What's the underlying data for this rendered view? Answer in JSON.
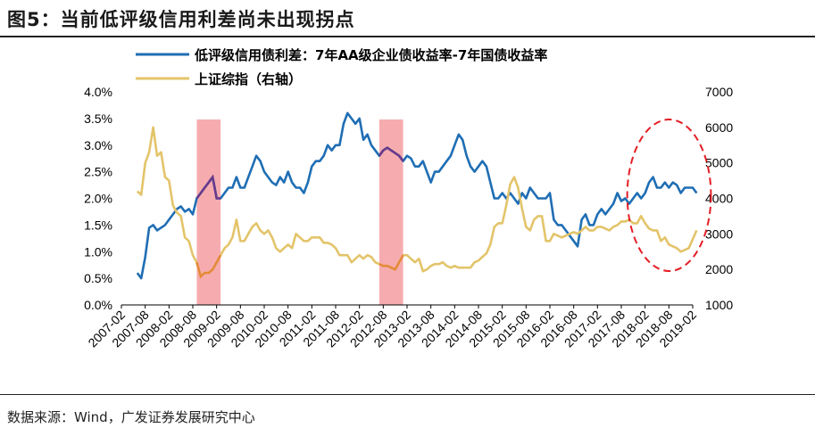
{
  "title": "图5：当前低评级信用利差尚未出现拐点",
  "source": "数据来源：Wind，广发证券发展研究中心",
  "colors": {
    "spread": "#1f6eb4",
    "spread_shaded": "#6a3a8c",
    "index": "#e3c46a",
    "index_shaded": "#e58a3a",
    "shade": "#f5a3a6",
    "circle": "#e31e24"
  },
  "chart_data": {
    "type": "line",
    "xlabel": "",
    "ylabel_left": "",
    "ylabel_right": "",
    "x_ticks": [
      "2007-02",
      "2007-08",
      "2008-02",
      "2008-08",
      "2009-02",
      "2009-08",
      "2010-02",
      "2010-08",
      "2011-02",
      "2011-08",
      "2012-02",
      "2012-08",
      "2013-02",
      "2013-08",
      "2014-02",
      "2014-08",
      "2015-02",
      "2015-08",
      "2016-02",
      "2016-08",
      "2017-02",
      "2017-08",
      "2018-02",
      "2018-08",
      "2019-02"
    ],
    "y_left_ticks": [
      "0.0%",
      "0.5%",
      "1.0%",
      "1.5%",
      "2.0%",
      "2.5%",
      "3.0%",
      "3.5%",
      "4.0%"
    ],
    "y_left_lim": [
      0,
      4
    ],
    "y_right_ticks": [
      "1000",
      "2000",
      "3000",
      "4000",
      "5000",
      "6000",
      "7000"
    ],
    "y_right_lim": [
      1000,
      7000
    ],
    "shaded_periods": [
      {
        "start": "2008-09",
        "end": "2009-03"
      },
      {
        "start": "2012-07",
        "end": "2013-01"
      }
    ],
    "highlight": {
      "start": "2018-02",
      "end": "2019-03",
      "shape": "dashed-ellipse"
    },
    "series": [
      {
        "name": "低评级信用债利差：7年AA级企业债收益率-7年国债收益率",
        "axis": "left",
        "x": [
          "2007-06",
          "2007-07",
          "2007-08",
          "2007-09",
          "2007-10",
          "2007-11",
          "2007-12",
          "2008-01",
          "2008-02",
          "2008-03",
          "2008-04",
          "2008-05",
          "2008-06",
          "2008-07",
          "2008-08",
          "2008-09",
          "2008-10",
          "2008-11",
          "2008-12",
          "2009-01",
          "2009-02",
          "2009-03",
          "2009-04",
          "2009-05",
          "2009-06",
          "2009-07",
          "2009-08",
          "2009-09",
          "2009-10",
          "2009-11",
          "2009-12",
          "2010-01",
          "2010-02",
          "2010-03",
          "2010-04",
          "2010-05",
          "2010-06",
          "2010-07",
          "2010-08",
          "2010-09",
          "2010-10",
          "2010-11",
          "2010-12",
          "2011-01",
          "2011-02",
          "2011-03",
          "2011-04",
          "2011-05",
          "2011-06",
          "2011-07",
          "2011-08",
          "2011-09",
          "2011-10",
          "2011-11",
          "2011-12",
          "2012-01",
          "2012-02",
          "2012-03",
          "2012-04",
          "2012-05",
          "2012-06",
          "2012-07",
          "2012-08",
          "2012-09",
          "2012-10",
          "2012-11",
          "2012-12",
          "2013-01",
          "2013-02",
          "2013-03",
          "2013-04",
          "2013-05",
          "2013-06",
          "2013-07",
          "2013-08",
          "2013-09",
          "2013-10",
          "2013-11",
          "2013-12",
          "2014-01",
          "2014-02",
          "2014-03",
          "2014-04",
          "2014-05",
          "2014-06",
          "2014-07",
          "2014-08",
          "2014-09",
          "2014-10",
          "2014-11",
          "2014-12",
          "2015-01",
          "2015-02",
          "2015-03",
          "2015-04",
          "2015-05",
          "2015-06",
          "2015-07",
          "2015-08",
          "2015-09",
          "2015-10",
          "2015-11",
          "2015-12",
          "2016-01",
          "2016-02",
          "2016-03",
          "2016-04",
          "2016-05",
          "2016-06",
          "2016-07",
          "2016-08",
          "2016-09",
          "2016-10",
          "2016-11",
          "2016-12",
          "2017-01",
          "2017-02",
          "2017-03",
          "2017-04",
          "2017-05",
          "2017-06",
          "2017-07",
          "2017-08",
          "2017-09",
          "2017-10",
          "2017-11",
          "2017-12",
          "2018-01",
          "2018-02",
          "2018-03",
          "2018-04",
          "2018-05",
          "2018-06",
          "2018-07",
          "2018-08",
          "2018-09",
          "2018-10",
          "2018-11",
          "2018-12",
          "2019-01",
          "2019-02",
          "2019-03"
        ],
        "values": [
          0.6,
          0.5,
          0.9,
          1.45,
          1.5,
          1.4,
          1.45,
          1.5,
          1.6,
          1.7,
          1.8,
          1.85,
          1.75,
          1.8,
          1.7,
          2.0,
          2.1,
          2.2,
          2.3,
          2.4,
          2.0,
          2.0,
          2.1,
          2.2,
          2.2,
          2.4,
          2.2,
          2.2,
          2.4,
          2.6,
          2.8,
          2.7,
          2.5,
          2.4,
          2.3,
          2.25,
          2.4,
          2.3,
          2.5,
          2.3,
          2.2,
          2.2,
          2.1,
          2.3,
          2.6,
          2.7,
          2.7,
          2.8,
          3.0,
          2.9,
          3.0,
          3.0,
          3.4,
          3.6,
          3.5,
          3.4,
          3.5,
          3.1,
          3.2,
          3.0,
          2.9,
          2.8,
          2.9,
          2.95,
          2.9,
          2.85,
          2.8,
          2.7,
          2.8,
          2.75,
          2.6,
          2.6,
          2.7,
          2.5,
          2.3,
          2.5,
          2.5,
          2.6,
          2.7,
          2.8,
          3.0,
          3.2,
          3.1,
          2.8,
          2.6,
          2.5,
          2.6,
          2.7,
          2.6,
          2.3,
          2.0,
          2.0,
          2.1,
          2.0,
          2.1,
          2.0,
          1.9,
          2.1,
          2.0,
          2.2,
          2.1,
          2.0,
          2.0,
          2.0,
          2.1,
          1.6,
          1.5,
          1.5,
          1.4,
          1.3,
          1.2,
          1.1,
          1.6,
          1.7,
          1.5,
          1.5,
          1.7,
          1.8,
          1.7,
          1.8,
          1.9,
          2.1,
          1.95,
          2.0,
          1.9,
          2.0,
          2.1,
          2.0,
          2.1,
          2.3,
          2.4,
          2.2,
          2.2,
          2.3,
          2.2,
          2.3,
          2.25,
          2.1,
          2.2,
          2.2,
          2.2,
          2.1
        ]
      },
      {
        "name": "上证综指（右轴）",
        "axis": "right",
        "x": [
          "2007-06",
          "2007-07",
          "2007-08",
          "2007-09",
          "2007-10",
          "2007-11",
          "2007-12",
          "2008-01",
          "2008-02",
          "2008-03",
          "2008-04",
          "2008-05",
          "2008-06",
          "2008-07",
          "2008-08",
          "2008-09",
          "2008-10",
          "2008-11",
          "2008-12",
          "2009-01",
          "2009-02",
          "2009-03",
          "2009-04",
          "2009-05",
          "2009-06",
          "2009-07",
          "2009-08",
          "2009-09",
          "2009-10",
          "2009-11",
          "2009-12",
          "2010-01",
          "2010-02",
          "2010-03",
          "2010-04",
          "2010-05",
          "2010-06",
          "2010-07",
          "2010-08",
          "2010-09",
          "2010-10",
          "2010-11",
          "2010-12",
          "2011-01",
          "2011-02",
          "2011-03",
          "2011-04",
          "2011-05",
          "2011-06",
          "2011-07",
          "2011-08",
          "2011-09",
          "2011-10",
          "2011-11",
          "2011-12",
          "2012-01",
          "2012-02",
          "2012-03",
          "2012-04",
          "2012-05",
          "2012-06",
          "2012-07",
          "2012-08",
          "2012-09",
          "2012-10",
          "2012-11",
          "2012-12",
          "2013-01",
          "2013-02",
          "2013-03",
          "2013-04",
          "2013-05",
          "2013-06",
          "2013-07",
          "2013-08",
          "2013-09",
          "2013-10",
          "2013-11",
          "2013-12",
          "2014-01",
          "2014-02",
          "2014-03",
          "2014-04",
          "2014-05",
          "2014-06",
          "2014-07",
          "2014-08",
          "2014-09",
          "2014-10",
          "2014-11",
          "2014-12",
          "2015-01",
          "2015-02",
          "2015-03",
          "2015-04",
          "2015-05",
          "2015-06",
          "2015-07",
          "2015-08",
          "2015-09",
          "2015-10",
          "2015-11",
          "2015-12",
          "2016-01",
          "2016-02",
          "2016-03",
          "2016-04",
          "2016-05",
          "2016-06",
          "2016-07",
          "2016-08",
          "2016-09",
          "2016-10",
          "2016-11",
          "2016-12",
          "2017-01",
          "2017-02",
          "2017-03",
          "2017-04",
          "2017-05",
          "2017-06",
          "2017-07",
          "2017-08",
          "2017-09",
          "2017-10",
          "2017-11",
          "2017-12",
          "2018-01",
          "2018-02",
          "2018-03",
          "2018-04",
          "2018-05",
          "2018-06",
          "2018-07",
          "2018-08",
          "2018-09",
          "2018-10",
          "2018-11",
          "2018-12",
          "2019-01",
          "2019-02",
          "2019-03"
        ],
        "values": [
          4200,
          4100,
          5000,
          5300,
          6000,
          5200,
          5300,
          4600,
          4500,
          3800,
          3600,
          3500,
          2900,
          2800,
          2400,
          2200,
          1800,
          1900,
          1900,
          2000,
          2200,
          2400,
          2600,
          2700,
          2900,
          3400,
          2800,
          2800,
          3000,
          3200,
          3300,
          3100,
          3000,
          3100,
          2900,
          2600,
          2500,
          2600,
          2700,
          2600,
          3000,
          2900,
          2800,
          2800,
          2900,
          2900,
          2900,
          2750,
          2750,
          2700,
          2600,
          2400,
          2400,
          2400,
          2200,
          2300,
          2400,
          2300,
          2400,
          2350,
          2200,
          2150,
          2100,
          2100,
          2050,
          2000,
          2200,
          2400,
          2400,
          2300,
          2200,
          2300,
          1950,
          2000,
          2100,
          2150,
          2150,
          2200,
          2100,
          2050,
          2100,
          2050,
          2050,
          2050,
          2050,
          2200,
          2250,
          2350,
          2450,
          2700,
          3200,
          3300,
          3300,
          3800,
          4400,
          4600,
          4300,
          3700,
          3200,
          3100,
          3400,
          3500,
          3500,
          2800,
          2800,
          3000,
          2950,
          2900,
          2950,
          3000,
          3050,
          3000,
          3100,
          3200,
          3100,
          3100,
          3200,
          3200,
          3150,
          3100,
          3200,
          3250,
          3350,
          3350,
          3400,
          3300,
          3300,
          3500,
          3300,
          3150,
          3100,
          3100,
          2800,
          2900,
          2700,
          2650,
          2600,
          2500,
          2550,
          2600,
          2850,
          3100
        ]
      }
    ]
  }
}
